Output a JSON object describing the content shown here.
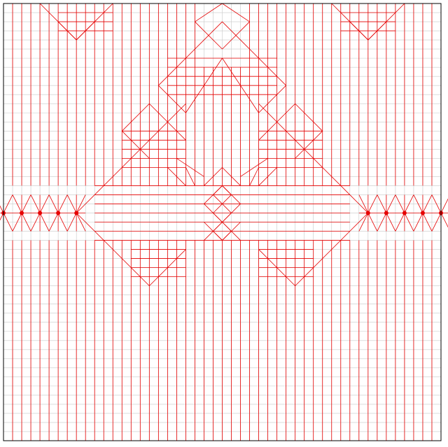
{
  "diagram": {
    "kind": "origami-crease-pattern",
    "colors": {
      "background": "#ffffff",
      "border": "#000000",
      "grid": "#c8c8c8",
      "mountain": "#e60000",
      "vertex": "#e60000"
    },
    "grid_divisions": 48
  }
}
